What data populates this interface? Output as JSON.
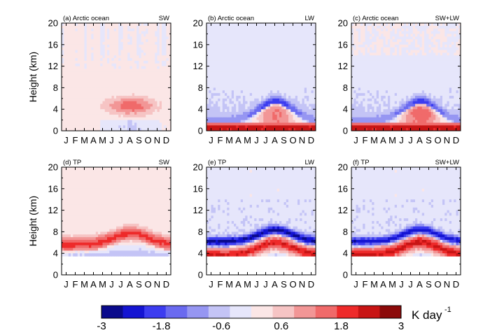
{
  "chart_data": {
    "type": "heatmap",
    "x_months": [
      "J",
      "F",
      "M",
      "A",
      "M",
      "J",
      "J",
      "A",
      "S",
      "O",
      "N",
      "D"
    ],
    "y_ticks": [
      0,
      4,
      8,
      12,
      16,
      20
    ],
    "y_label": "Height (km)",
    "ylim": [
      0,
      20
    ],
    "panels": [
      {
        "label": "(a) Arctic ocean",
        "corner": "SW",
        "region": "arctic",
        "component": "SW"
      },
      {
        "label": "(b) Arctic ocean",
        "corner": "LW",
        "region": "arctic",
        "component": "LW"
      },
      {
        "label": "(c) Arctic ocean",
        "corner": "SW+LW",
        "region": "arctic",
        "component": "SWLW"
      },
      {
        "label": "(d) TP",
        "corner": "SW",
        "region": "tp",
        "component": "SW"
      },
      {
        "label": "(e) TP",
        "corner": "LW",
        "region": "tp",
        "component": "LW"
      },
      {
        "label": "(f) TP",
        "corner": "SW+LW",
        "region": "tp",
        "component": "SWLW"
      }
    ],
    "colorbar": {
      "min": -3,
      "max": 3,
      "tick_labels": [
        "-3",
        "-1.8",
        "-0.6",
        "0.6",
        "1.8",
        "3"
      ],
      "unit": "K day",
      "unit_sup": "-1",
      "colors": [
        "#0a0a8c",
        "#1414d2",
        "#3c3cf0",
        "#6a6af0",
        "#9696f2",
        "#c4c4f6",
        "#e6e6fb",
        "#fbe6e6",
        "#f6c4c4",
        "#f29696",
        "#f06a6a",
        "#ee2a2a",
        "#c81414",
        "#8c0a0a"
      ]
    }
  }
}
